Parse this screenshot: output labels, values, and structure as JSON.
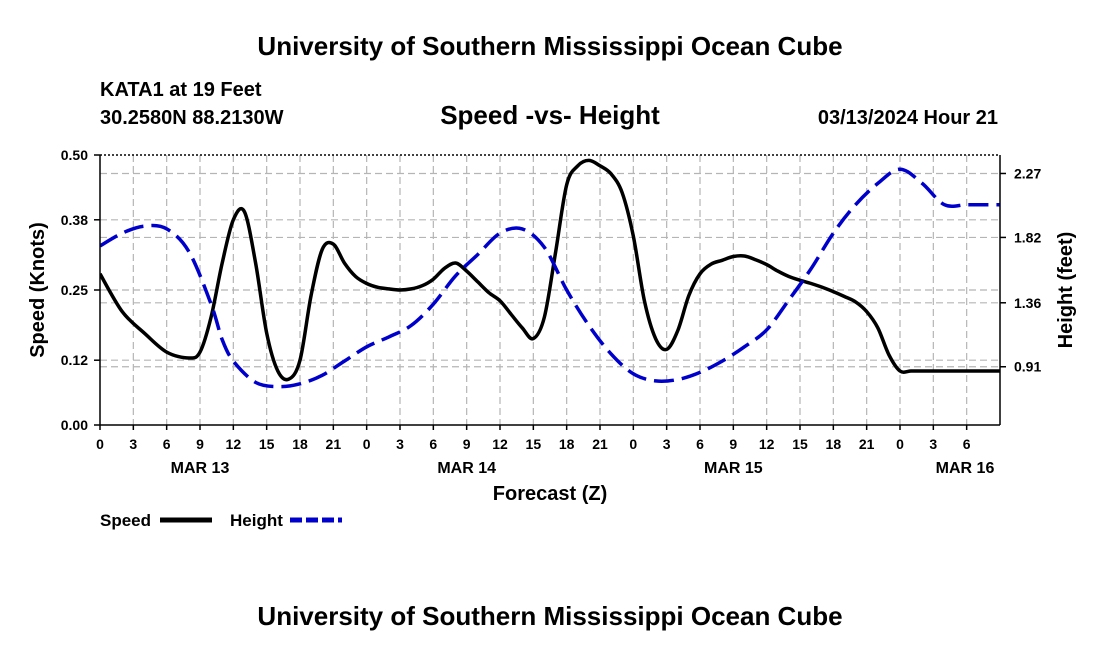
{
  "header": {
    "title": "University of Southern Mississippi Ocean Cube",
    "station": "KATA1 at 19 Feet",
    "location": "30.2580N  88.2130W",
    "chart_title": "Speed -vs- Height",
    "datetime": "03/13/2024 Hour 21"
  },
  "footer": {
    "title": "University of Southern Mississippi Ocean Cube"
  },
  "chart_data": {
    "type": "line",
    "title": "Speed -vs- Height",
    "xlabel": "Forecast (Z)",
    "ylabel": "Speed (Knots)",
    "y2label": "Height (feet)",
    "x_range_hours": [
      0,
      81
    ],
    "ylim": [
      0,
      0.5
    ],
    "y2lim": [
      0.5,
      2.4
    ],
    "yticks": [
      "0.00",
      "0.12",
      "0.25",
      "0.38",
      "0.50"
    ],
    "y2ticks": [
      "0.91",
      "1.36",
      "1.82",
      "2.27"
    ],
    "xtick_labels": [
      "0",
      "3",
      "6",
      "9",
      "12",
      "15",
      "18",
      "21",
      "0",
      "3",
      "6",
      "9",
      "12",
      "15",
      "18",
      "21",
      "0",
      "3",
      "6",
      "9",
      "12",
      "15",
      "18",
      "21",
      "0",
      "3",
      "6"
    ],
    "date_labels": [
      {
        "hour": 9,
        "label": "MAR 13"
      },
      {
        "hour": 33,
        "label": "MAR 14"
      },
      {
        "hour": 57,
        "label": "MAR 15"
      },
      {
        "hour": 81,
        "label": "MAR 16"
      }
    ],
    "grid": true,
    "legend_position": "bottom-left",
    "series": [
      {
        "name": "Speed",
        "axis": "left",
        "color": "#000000",
        "style": "solid",
        "x": [
          0,
          2,
          4,
          6,
          8,
          9,
          10,
          11,
          12,
          13,
          14,
          15,
          16,
          17,
          18,
          19,
          20,
          21,
          22,
          23,
          24,
          25,
          26,
          27,
          28,
          29,
          30,
          31,
          32,
          33,
          34,
          35,
          36,
          37,
          38,
          39,
          40,
          41,
          42,
          43,
          44,
          45,
          46,
          47,
          48,
          49,
          50,
          51,
          52,
          53,
          54,
          55,
          56,
          57,
          58,
          59,
          60,
          61,
          62,
          63,
          64,
          65,
          66,
          67,
          68,
          69,
          70,
          71,
          72,
          73,
          74,
          75,
          76,
          77,
          78,
          79,
          80,
          81
        ],
        "values": [
          0.28,
          0.21,
          0.17,
          0.135,
          0.124,
          0.135,
          0.2,
          0.3,
          0.38,
          0.395,
          0.3,
          0.17,
          0.1,
          0.085,
          0.12,
          0.24,
          0.325,
          0.335,
          0.3,
          0.275,
          0.262,
          0.255,
          0.252,
          0.25,
          0.252,
          0.258,
          0.27,
          0.29,
          0.3,
          0.285,
          0.265,
          0.245,
          0.23,
          0.205,
          0.18,
          0.16,
          0.2,
          0.32,
          0.445,
          0.48,
          0.49,
          0.48,
          0.465,
          0.43,
          0.35,
          0.23,
          0.16,
          0.14,
          0.175,
          0.24,
          0.28,
          0.298,
          0.305,
          0.312,
          0.313,
          0.306,
          0.297,
          0.285,
          0.275,
          0.268,
          0.262,
          0.255,
          0.247,
          0.238,
          0.228,
          0.21,
          0.18,
          0.13,
          0.1,
          0.1,
          0.1,
          0.1,
          0.1,
          0.1,
          0.1,
          0.1,
          0.1,
          0.1
        ]
      },
      {
        "name": "Height",
        "axis": "right",
        "color": "#0000cc",
        "style": "dashed",
        "x": [
          0,
          2,
          4,
          6,
          8,
          10,
          11,
          12,
          14,
          16,
          18,
          20,
          22,
          24,
          26,
          28,
          30,
          32,
          34,
          36,
          38,
          40,
          42,
          44,
          46,
          48,
          50,
          52,
          54,
          56,
          58,
          60,
          62,
          64,
          66,
          68,
          70,
          72,
          74,
          76,
          78,
          80,
          81
        ],
        "values": [
          1.76,
          1.85,
          1.9,
          1.88,
          1.72,
          1.35,
          1.1,
          0.95,
          0.8,
          0.77,
          0.79,
          0.85,
          0.95,
          1.05,
          1.12,
          1.2,
          1.35,
          1.55,
          1.7,
          1.85,
          1.88,
          1.75,
          1.45,
          1.2,
          1.0,
          0.86,
          0.81,
          0.82,
          0.87,
          0.95,
          1.05,
          1.17,
          1.38,
          1.6,
          1.85,
          2.05,
          2.2,
          2.3,
          2.2,
          2.05,
          2.05,
          2.05,
          2.05
        ]
      }
    ]
  }
}
